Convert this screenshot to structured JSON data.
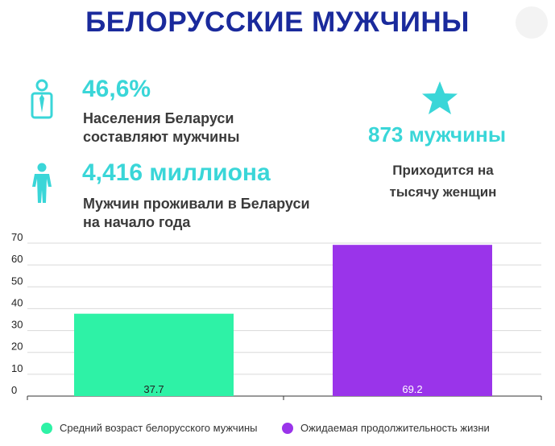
{
  "title": "БЕЛОРУССКИЕ МУЖЧИНЫ",
  "stats": {
    "share": {
      "value": "46,6%",
      "line1": "Населения Беларуси",
      "line2": "составляют мужчины",
      "icon": "man-with-tie-icon"
    },
    "count": {
      "value": "4,416 миллиона",
      "line1": "Мужчин проживали в Беларуси",
      "line2": "на начало года",
      "icon": "man-figure-icon"
    },
    "ratio": {
      "value": "873 мужчины",
      "line1": "Приходится на",
      "line2": "тысячу женщин",
      "icon": "star-icon"
    }
  },
  "colors": {
    "title": "#1a2a9c",
    "accent": "#3ad6d8",
    "bar_age": "#2ef2a6",
    "bar_life": "#9a34ea"
  },
  "chart_data": {
    "type": "bar",
    "ylim": [
      0,
      70
    ],
    "yticks": [
      "0",
      "10",
      "20",
      "30",
      "40",
      "50",
      "60",
      "70"
    ],
    "grid": true,
    "legend_position": "bottom",
    "series": [
      {
        "name": "Средний возраст белорусского мужчины",
        "value": 37.7,
        "label": "37.7",
        "color": "#2ef2a6"
      },
      {
        "name": "Ожидаемая продолжительность жизни",
        "value": 69.2,
        "label": "69.2",
        "color": "#9a34ea"
      }
    ]
  }
}
